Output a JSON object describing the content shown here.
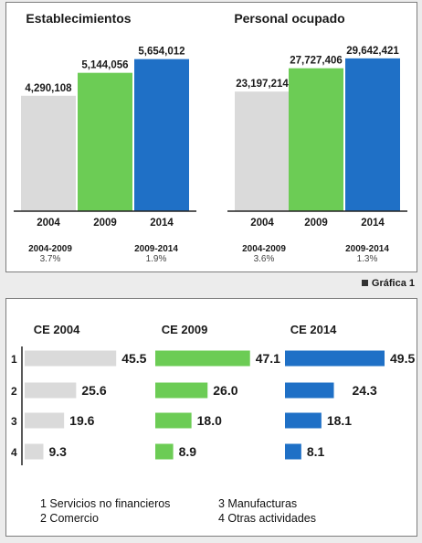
{
  "colors": {
    "bar_2004": "#dadada",
    "bar_2009": "#6ccc55",
    "bar_2014": "#1f70c6"
  },
  "caption": "Gráfica 1",
  "chart_data": [
    {
      "type": "bar",
      "title": "Establecimientos",
      "categories": [
        "2004",
        "2009",
        "2014"
      ],
      "values": [
        4290108,
        5144056,
        5654012
      ],
      "value_labels": [
        "4,290,108",
        "5,144,056",
        "5,654,012"
      ],
      "ylim": [
        0,
        6900000
      ],
      "growth": [
        {
          "period": "2004-2009",
          "rate": "3.7%"
        },
        {
          "period": "2009-2014",
          "rate": "1.9%"
        }
      ]
    },
    {
      "type": "bar",
      "title": "Personal ocupado",
      "categories": [
        "2004",
        "2009",
        "2014"
      ],
      "values": [
        23197214,
        27727406,
        29642421
      ],
      "value_labels": [
        "23,197,214",
        "27,727,406",
        "29,642,421"
      ],
      "ylim": [
        0,
        36000000
      ],
      "growth": [
        {
          "period": "2004-2009",
          "rate": "3.6%"
        },
        {
          "period": "2009-2014",
          "rate": "1.3%"
        }
      ]
    },
    {
      "type": "bar",
      "orientation": "horizontal",
      "categories": [
        "1",
        "2",
        "3",
        "4"
      ],
      "series": [
        {
          "name": "CE 2004",
          "values": [
            45.5,
            25.6,
            19.6,
            9.3
          ],
          "labels": [
            "45.5",
            "25.6",
            "19.6",
            "9.3"
          ]
        },
        {
          "name": "CE 2009",
          "values": [
            47.1,
            26.0,
            18.0,
            8.9
          ],
          "labels": [
            "47.1",
            "26.0",
            "18.0",
            "8.9"
          ]
        },
        {
          "name": "CE 2014",
          "values": [
            49.5,
            24.3,
            18.1,
            8.1
          ],
          "labels": [
            "49.5",
            "24.3",
            "18.1",
            "8.1"
          ]
        }
      ],
      "legend": [
        "1 Servicios no financieros",
        "2 Comercio",
        "3 Manufacturas",
        "4 Otras actividades"
      ]
    }
  ]
}
